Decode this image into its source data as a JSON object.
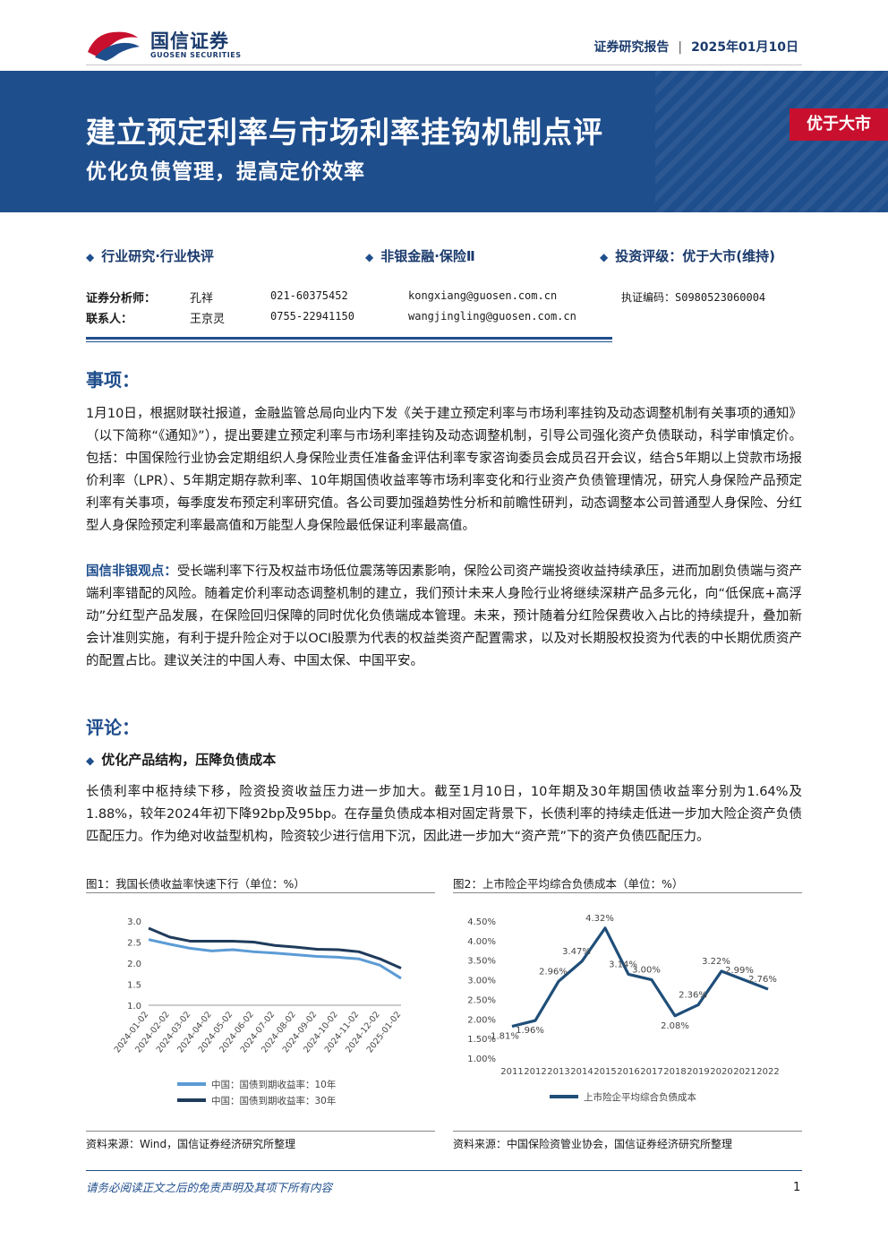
{
  "header": {
    "brand_cn": "国信证券",
    "brand_en": "GUOSEN SECURITIES",
    "report_type": "证券研究报告",
    "date": "2025年01月10日"
  },
  "banner": {
    "title": "建立预定利率与市场利率挂钩机制点评",
    "subtitle": "优化负债管理，提高定价效率",
    "rating": "优于大市"
  },
  "categories": {
    "c1": "行业研究·行业快评",
    "c2": "非银金融·保险Ⅱ",
    "c3": "投资评级：优于大市(维持)"
  },
  "analysts": [
    {
      "role": "证券分析师：",
      "name": "孔祥",
      "phone": "021-60375452",
      "email": "kongxiang@guosen.com.cn",
      "cert": "执证编码：S0980523060004"
    },
    {
      "role": "联系人：",
      "name": "王京灵",
      "phone": "0755-22941150",
      "email": "wangjingling@guosen.com.cn",
      "cert": ""
    }
  ],
  "sections": {
    "event_title": "事项：",
    "event_text": "1月10日，根据财联社报道，金融监管总局向业内下发《关于建立预定利率与市场利率挂钩及动态调整机制有关事项的通知》（以下简称“《通知》”），提出要建立预定利率与市场利率挂钩及动态调整机制，引导公司强化资产负债联动，科学审慎定价。包括：中国保险行业协会定期组织人身保险业责任准备金评估利率专家咨询委员会成员召开会议，结合5年期以上贷款市场报价利率（LPR）、5年期定期存款利率、10年期国债收益率等市场利率变化和行业资产负债管理情况，研究人身保险产品预定利率有关事项，每季度发布预定利率研究值。各公司要加强趋势性分析和前瞻性研判，动态调整本公司普通型人身保险、分红型人身保险预定利率最高值和万能型人身保险最低保证利率最高值。",
    "view_label": "国信非银观点：",
    "view_text": "受长端利率下行及权益市场低位震荡等因素影响，保险公司资产端投资收益持续承压，进而加剧负债端与资产端利率错配的风险。随着定价利率动态调整机制的建立，我们预计未来人身险行业将继续深耕产品多元化，向“低保底+高浮动”分红型产品发展，在保险回归保障的同时优化负债端成本管理。未来，预计随着分红险保费收入占比的持续提升，叠加新会计准则实施，有利于提升险企对于以OCI股票为代表的权益类资产配置需求，以及对长期股权投资为代表的中长期优质资产的配置占比。建议关注的中国人寿、中国太保、中国平安。",
    "comment_title": "评论：",
    "bullet": "优化产品结构，压降负债成本",
    "comment_text": "长债利率中枢持续下移，险资投资收益压力进一步加大。截至1月10日，10年期及30年期国债收益率分别为1.64%及1.88%，较年2024年初下降92bp及95bp。在存量负债成本相对固定背景下，长债利率的持续走低进一步加大险企资产负债匹配压力。作为绝对收益型机构，险资较少进行信用下沉，因此进一步加大“资产荒”下的资产负债匹配压力。"
  },
  "figures": {
    "fig1_title": "图1：我国长债收益率快速下行（单位：%）",
    "fig1_source": "资料来源：Wind，国信证券经济研究所整理",
    "fig2_title": "图2：上市险企平均综合负债成本（单位：%）",
    "fig2_source": "资料来源：中国保险资管业协会，国信证券经济研究所整理"
  },
  "chart_data": [
    {
      "type": "line",
      "x": [
        "2024-01-02",
        "2024-02-02",
        "2024-03-02",
        "2024-04-02",
        "2024-05-02",
        "2024-06-02",
        "2024-07-02",
        "2024-08-02",
        "2024-09-02",
        "2024-10-02",
        "2024-11-02",
        "2024-12-02",
        "2025-01-02"
      ],
      "ylim": [
        1.0,
        3.0
      ],
      "yticks": [
        "3.0",
        "2.5",
        "2.0",
        "1.5",
        "1.0"
      ],
      "grid": false,
      "legend": "bottom",
      "series": [
        {
          "name": "中国：国债到期收益率：10年",
          "color": "#5b9bd5",
          "values": [
            2.56,
            2.45,
            2.35,
            2.29,
            2.32,
            2.27,
            2.24,
            2.2,
            2.16,
            2.14,
            2.1,
            1.95,
            1.64
          ]
        },
        {
          "name": "中国：国债到期收益率：30年",
          "color": "#1f3b5c",
          "values": [
            2.83,
            2.62,
            2.52,
            2.52,
            2.52,
            2.5,
            2.42,
            2.38,
            2.33,
            2.32,
            2.27,
            2.1,
            1.88
          ]
        }
      ]
    },
    {
      "type": "line",
      "x": [
        "2011",
        "2012",
        "2013",
        "2014",
        "2015",
        "2016",
        "2017",
        "2018",
        "2019",
        "2020",
        "2021",
        "2022"
      ],
      "ylim": [
        1.0,
        4.5
      ],
      "yticks": [
        "4.50%",
        "4.00%",
        "3.50%",
        "3.00%",
        "2.50%",
        "2.00%",
        "1.50%",
        "1.00%"
      ],
      "grid": false,
      "legend": "bottom",
      "series": [
        {
          "name": "上市险企平均综合负债成本",
          "color": "#1f4e79",
          "values": [
            1.81,
            1.96,
            2.96,
            3.47,
            4.32,
            3.14,
            3.0,
            2.08,
            2.36,
            3.22,
            2.99,
            2.76
          ],
          "labels": [
            "1.81%",
            "1.96%",
            "2.96%",
            "3.47%",
            "4.32%",
            "3.14%",
            "3.00%",
            "2.08%",
            "2.36%",
            "3.22%",
            "2.99%",
            "2.76%"
          ]
        }
      ]
    }
  ],
  "footer": {
    "disclaimer": "请务必阅读正文之后的免责声明及其项下所有内容",
    "page": "1"
  }
}
